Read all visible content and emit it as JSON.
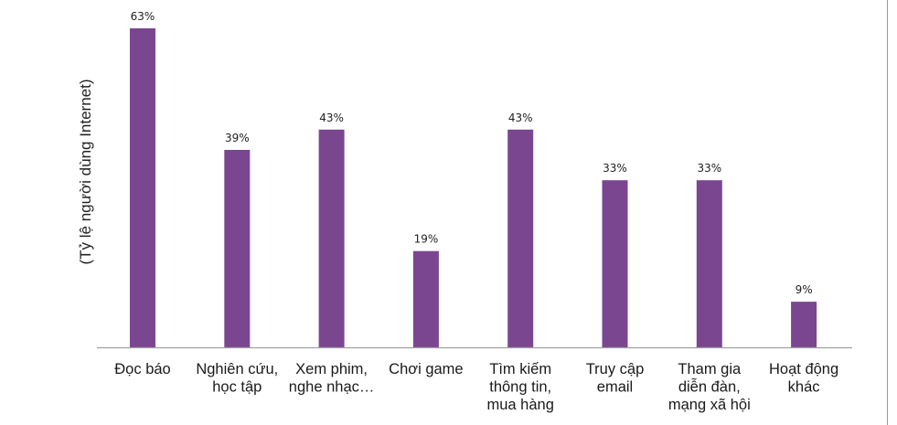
{
  "chart_data": {
    "type": "bar",
    "title": "",
    "xlabel": "",
    "ylabel": "(Tỷ lệ người dùng Internet)",
    "ylim": [
      0,
      63
    ],
    "bar_color": "#7b4690",
    "axis_color": "#a0a0a0",
    "value_suffix": "%",
    "categories": [
      [
        "Đọc báo"
      ],
      [
        "Nghiên cứu,",
        "học tập"
      ],
      [
        "Xem phim,",
        "nghe nhạc…"
      ],
      [
        "Chơi game"
      ],
      [
        "Tìm kiếm",
        "thông tin,",
        "mua hàng"
      ],
      [
        "Truy cập",
        "email"
      ],
      [
        "Tham gia",
        "diễn đàn,",
        "mạng xã hội"
      ],
      [
        "Hoạt động",
        "khác"
      ]
    ],
    "values": [
      63,
      39,
      43,
      19,
      43,
      33,
      33,
      9
    ]
  }
}
